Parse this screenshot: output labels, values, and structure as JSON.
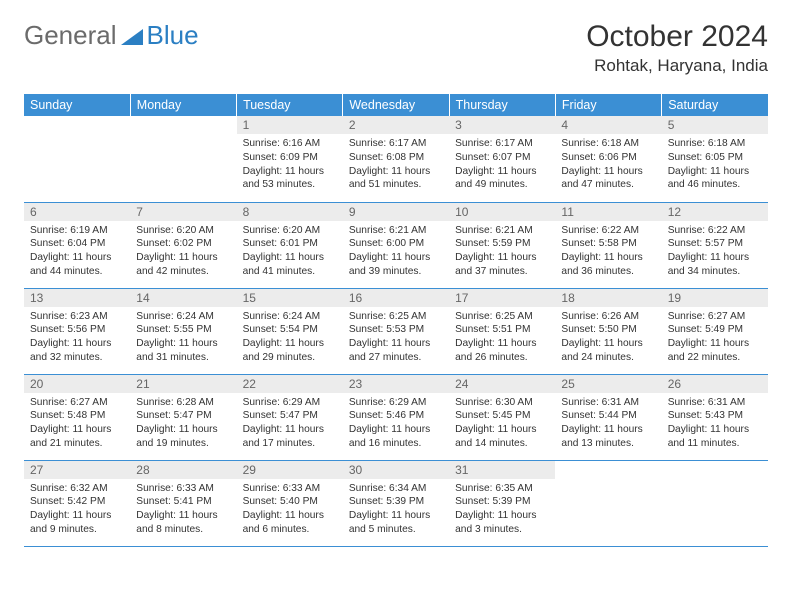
{
  "logo": {
    "text1": "General",
    "text2": "Blue"
  },
  "title": "October 2024",
  "location": "Rohtak, Haryana, India",
  "colors": {
    "header_bg": "#3b8fd4",
    "header_text": "#ffffff",
    "daynum_bg": "#ececec",
    "daynum_text": "#666666",
    "body_text": "#333333",
    "row_border": "#3b8fd4",
    "logo_gray": "#6b6b6b",
    "logo_blue": "#2b7fc3"
  },
  "day_headers": [
    "Sunday",
    "Monday",
    "Tuesday",
    "Wednesday",
    "Thursday",
    "Friday",
    "Saturday"
  ],
  "weeks": [
    [
      null,
      null,
      {
        "n": "1",
        "sr": "6:16 AM",
        "ss": "6:09 PM",
        "dl": "11 hours and 53 minutes."
      },
      {
        "n": "2",
        "sr": "6:17 AM",
        "ss": "6:08 PM",
        "dl": "11 hours and 51 minutes."
      },
      {
        "n": "3",
        "sr": "6:17 AM",
        "ss": "6:07 PM",
        "dl": "11 hours and 49 minutes."
      },
      {
        "n": "4",
        "sr": "6:18 AM",
        "ss": "6:06 PM",
        "dl": "11 hours and 47 minutes."
      },
      {
        "n": "5",
        "sr": "6:18 AM",
        "ss": "6:05 PM",
        "dl": "11 hours and 46 minutes."
      }
    ],
    [
      {
        "n": "6",
        "sr": "6:19 AM",
        "ss": "6:04 PM",
        "dl": "11 hours and 44 minutes."
      },
      {
        "n": "7",
        "sr": "6:20 AM",
        "ss": "6:02 PM",
        "dl": "11 hours and 42 minutes."
      },
      {
        "n": "8",
        "sr": "6:20 AM",
        "ss": "6:01 PM",
        "dl": "11 hours and 41 minutes."
      },
      {
        "n": "9",
        "sr": "6:21 AM",
        "ss": "6:00 PM",
        "dl": "11 hours and 39 minutes."
      },
      {
        "n": "10",
        "sr": "6:21 AM",
        "ss": "5:59 PM",
        "dl": "11 hours and 37 minutes."
      },
      {
        "n": "11",
        "sr": "6:22 AM",
        "ss": "5:58 PM",
        "dl": "11 hours and 36 minutes."
      },
      {
        "n": "12",
        "sr": "6:22 AM",
        "ss": "5:57 PM",
        "dl": "11 hours and 34 minutes."
      }
    ],
    [
      {
        "n": "13",
        "sr": "6:23 AM",
        "ss": "5:56 PM",
        "dl": "11 hours and 32 minutes."
      },
      {
        "n": "14",
        "sr": "6:24 AM",
        "ss": "5:55 PM",
        "dl": "11 hours and 31 minutes."
      },
      {
        "n": "15",
        "sr": "6:24 AM",
        "ss": "5:54 PM",
        "dl": "11 hours and 29 minutes."
      },
      {
        "n": "16",
        "sr": "6:25 AM",
        "ss": "5:53 PM",
        "dl": "11 hours and 27 minutes."
      },
      {
        "n": "17",
        "sr": "6:25 AM",
        "ss": "5:51 PM",
        "dl": "11 hours and 26 minutes."
      },
      {
        "n": "18",
        "sr": "6:26 AM",
        "ss": "5:50 PM",
        "dl": "11 hours and 24 minutes."
      },
      {
        "n": "19",
        "sr": "6:27 AM",
        "ss": "5:49 PM",
        "dl": "11 hours and 22 minutes."
      }
    ],
    [
      {
        "n": "20",
        "sr": "6:27 AM",
        "ss": "5:48 PM",
        "dl": "11 hours and 21 minutes."
      },
      {
        "n": "21",
        "sr": "6:28 AM",
        "ss": "5:47 PM",
        "dl": "11 hours and 19 minutes."
      },
      {
        "n": "22",
        "sr": "6:29 AM",
        "ss": "5:47 PM",
        "dl": "11 hours and 17 minutes."
      },
      {
        "n": "23",
        "sr": "6:29 AM",
        "ss": "5:46 PM",
        "dl": "11 hours and 16 minutes."
      },
      {
        "n": "24",
        "sr": "6:30 AM",
        "ss": "5:45 PM",
        "dl": "11 hours and 14 minutes."
      },
      {
        "n": "25",
        "sr": "6:31 AM",
        "ss": "5:44 PM",
        "dl": "11 hours and 13 minutes."
      },
      {
        "n": "26",
        "sr": "6:31 AM",
        "ss": "5:43 PM",
        "dl": "11 hours and 11 minutes."
      }
    ],
    [
      {
        "n": "27",
        "sr": "6:32 AM",
        "ss": "5:42 PM",
        "dl": "11 hours and 9 minutes."
      },
      {
        "n": "28",
        "sr": "6:33 AM",
        "ss": "5:41 PM",
        "dl": "11 hours and 8 minutes."
      },
      {
        "n": "29",
        "sr": "6:33 AM",
        "ss": "5:40 PM",
        "dl": "11 hours and 6 minutes."
      },
      {
        "n": "30",
        "sr": "6:34 AM",
        "ss": "5:39 PM",
        "dl": "11 hours and 5 minutes."
      },
      {
        "n": "31",
        "sr": "6:35 AM",
        "ss": "5:39 PM",
        "dl": "11 hours and 3 minutes."
      },
      null,
      null
    ]
  ],
  "labels": {
    "sunrise": "Sunrise:",
    "sunset": "Sunset:",
    "daylight": "Daylight:"
  }
}
